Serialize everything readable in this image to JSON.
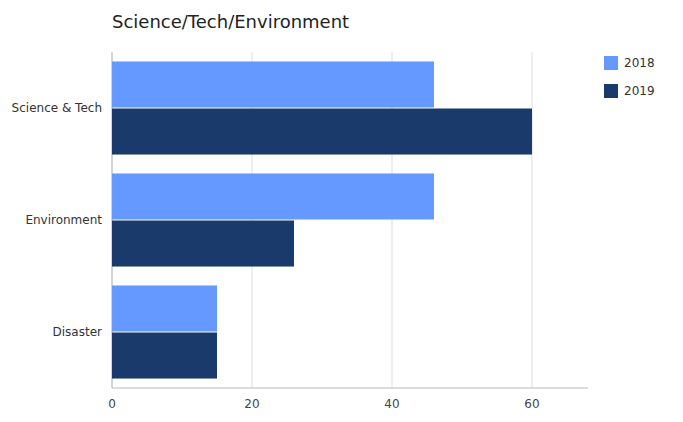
{
  "chart_data": {
    "type": "bar",
    "orientation": "horizontal",
    "title": "Science/Tech/Environment",
    "categories": [
      "Disaster",
      "Environment",
      "Science & Tech"
    ],
    "series": [
      {
        "name": "2018",
        "color": "#6699ff",
        "values": [
          15,
          46,
          46
        ]
      },
      {
        "name": "2019",
        "color": "#1a3a6b",
        "values": [
          15,
          26,
          60
        ]
      }
    ],
    "xlim": [
      0,
      68
    ],
    "xticks": [
      0,
      20,
      40,
      60
    ],
    "grid": true,
    "legend": "right"
  }
}
